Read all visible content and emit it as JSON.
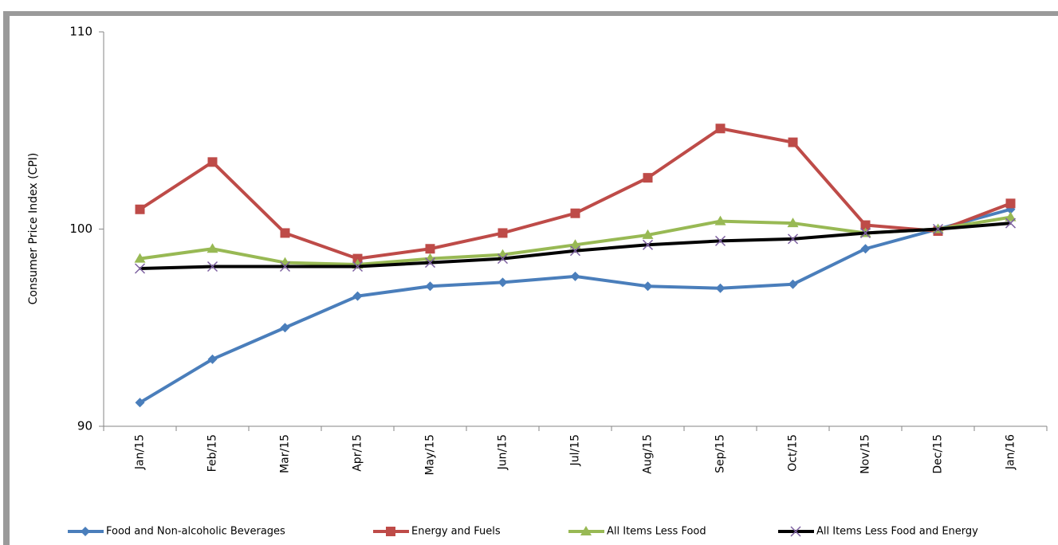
{
  "chart_data": {
    "type": "line",
    "y_label": "Consumer Price Index (CPI)",
    "categories": [
      "Jan/15",
      "Feb/15",
      "Mar/15",
      "Apr/15",
      "May/15",
      "Jun/15",
      "Jul/15",
      "Aug/15",
      "Sep/15",
      "Oct/15",
      "Nov/15",
      "Dec/15",
      "Jan/16"
    ],
    "series": [
      {
        "name": "Food and Non-alcoholic Beverages",
        "color": "#4a7ebb",
        "marker": "diamond",
        "marker_color": "#4a7ebb",
        "values": [
          91.2,
          93.4,
          95.0,
          96.6,
          97.1,
          97.3,
          97.6,
          97.1,
          97.0,
          97.2,
          99.0,
          100.0,
          101.0
        ]
      },
      {
        "name": "Energy and Fuels",
        "color": "#be4b48",
        "marker": "square",
        "marker_color": "#be4b48",
        "values": [
          101.0,
          103.4,
          99.8,
          98.5,
          99.0,
          99.8,
          100.8,
          102.6,
          105.1,
          104.4,
          100.2,
          99.9,
          101.3
        ]
      },
      {
        "name": "All Items Less Food",
        "color": "#98b954",
        "marker": "triangle",
        "marker_color": "#98b954",
        "values": [
          98.5,
          99.0,
          98.3,
          98.2,
          98.5,
          98.7,
          99.2,
          99.7,
          100.4,
          100.3,
          99.8,
          100.0,
          100.6
        ]
      },
      {
        "name": "All Items Less Food and Energy",
        "color": "#000000",
        "marker": "x",
        "marker_color": "#7d60a0",
        "values": [
          98.0,
          98.1,
          98.1,
          98.1,
          98.3,
          98.5,
          98.9,
          99.2,
          99.4,
          99.5,
          99.8,
          100.0,
          100.3
        ]
      }
    ],
    "ylim": [
      90,
      110
    ],
    "yticks": [
      90,
      100,
      110
    ],
    "grid": false,
    "legend": "bottom"
  }
}
